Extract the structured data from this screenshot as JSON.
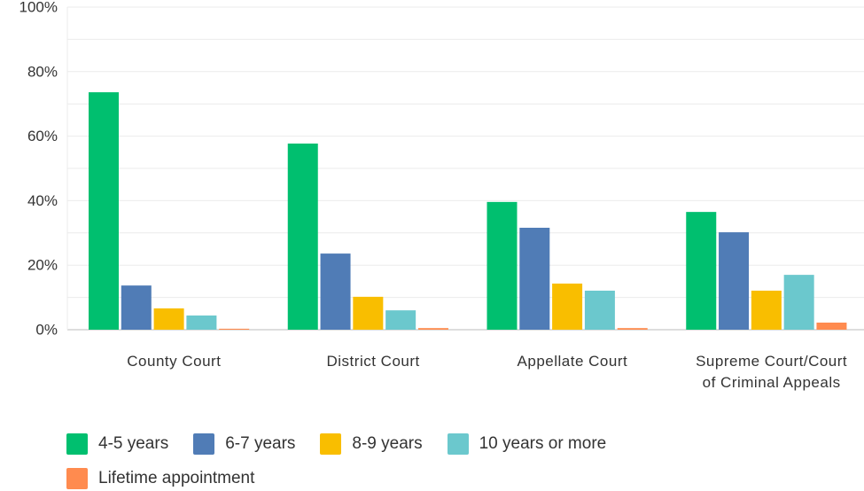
{
  "chart_data": {
    "type": "bar",
    "categories": [
      "County Court",
      "District Court",
      "Appellate Court",
      "Supreme Court/Court of Criminal Appeals"
    ],
    "series": [
      {
        "name": "4-5 years",
        "color": "#00bf6f",
        "values": [
          73.6,
          57.7,
          39.6,
          36.5
        ]
      },
      {
        "name": "6-7 years",
        "color": "#507cb6",
        "values": [
          13.7,
          23.6,
          31.6,
          30.2
        ]
      },
      {
        "name": "8-9  years",
        "color": "#f9be00",
        "values": [
          6.6,
          10.2,
          14.3,
          12.1
        ]
      },
      {
        "name": "10 years or more",
        "color": "#6bc8cd",
        "values": [
          4.4,
          6,
          12.1,
          17
        ]
      },
      {
        "name": "Lifetime appointment",
        "color": "#ff8b4f",
        "values": [
          0.3,
          0.5,
          0.5,
          2.2
        ]
      }
    ],
    "ylim": [
      0,
      100
    ],
    "yticks": [
      {
        "value": 0,
        "label": "0%"
      },
      {
        "value": 20,
        "label": "20%"
      },
      {
        "value": 40,
        "label": "40%"
      },
      {
        "value": 60,
        "label": "60%"
      },
      {
        "value": 80,
        "label": "80%"
      },
      {
        "value": 100,
        "label": "100%"
      }
    ],
    "minor_yticks": [
      10,
      30,
      50,
      70,
      90
    ],
    "grid": true
  }
}
